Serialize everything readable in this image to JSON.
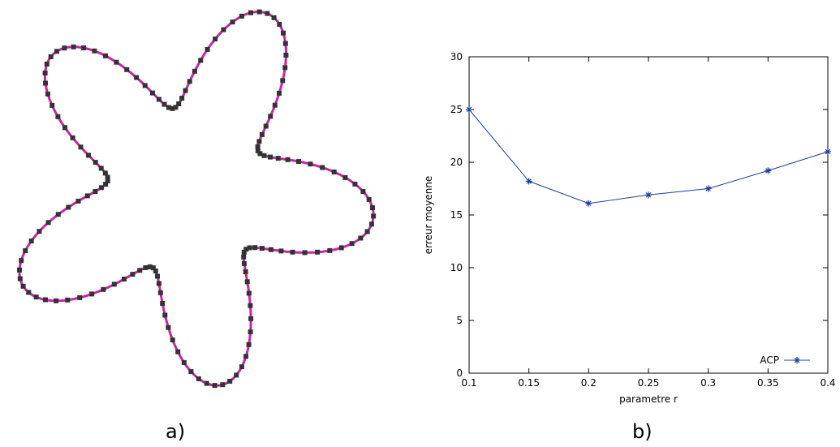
{
  "panel_a": {
    "caption": "a)",
    "shape": {
      "type": "star-curve",
      "lobes": 5,
      "line_color": "#cc22aa",
      "marker_color": "#333333"
    }
  },
  "panel_b": {
    "caption": "b)"
  },
  "chart_data": {
    "type": "line",
    "title": "",
    "xlabel": "parametre r",
    "ylabel": "erreur moyenne",
    "xlim": [
      0.1,
      0.4
    ],
    "ylim": [
      0,
      30
    ],
    "x_ticks": [
      "0.1",
      "0.15",
      "0.2",
      "0.25",
      "0.3",
      "0.35",
      "0.4"
    ],
    "y_ticks": [
      "0",
      "5",
      "10",
      "15",
      "20",
      "25",
      "30"
    ],
    "grid": false,
    "legend": "bottom-right",
    "series": [
      {
        "name": "ACP",
        "color": "#1f3f9f",
        "marker": "asterisk",
        "x": [
          0.1,
          0.15,
          0.2,
          0.25,
          0.3,
          0.35,
          0.4
        ],
        "y": [
          25.0,
          18.2,
          16.1,
          16.9,
          17.5,
          19.2,
          21.0
        ]
      }
    ]
  }
}
